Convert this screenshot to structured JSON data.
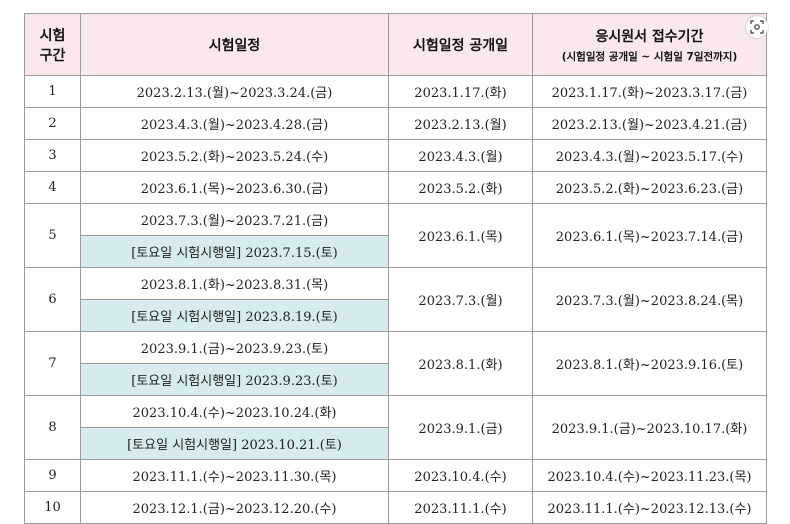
{
  "header": {
    "col_period_line1": "시험",
    "col_period_line2": "구간",
    "col_schedule": "시험일정",
    "col_open_date": "시험일정 공개일",
    "col_apply": "응시원서 접수기간",
    "col_apply_sub": "(시험일정 공개일 ~ 시험일 7일전까지)"
  },
  "rows": [
    {
      "period": "1",
      "schedule": "2023.2.13.(월)~2023.3.24.(금)",
      "open": "2023.1.17.(화)",
      "apply": "2023.1.17.(화)~2023.3.17.(금)"
    },
    {
      "period": "2",
      "schedule": "2023.4.3.(월)~2023.4.28.(금)",
      "open": "2023.2.13.(월)",
      "apply": "2023.2.13.(월)~2023.4.21.(금)"
    },
    {
      "period": "3",
      "schedule": "2023.5.2.(화)~2023.5.24.(수)",
      "open": "2023.4.3.(월)",
      "apply": "2023.4.3.(월)~2023.5.17.(수)"
    },
    {
      "period": "4",
      "schedule": "2023.6.1.(목)~2023.6.30.(금)",
      "open": "2023.5.2.(화)",
      "apply": "2023.5.2.(화)~2023.6.23.(금)"
    },
    {
      "period": "5",
      "schedule": "2023.7.3.(월)~2023.7.21.(금)",
      "saturday": "[토요일 시험시행일] 2023.7.15.(토)",
      "open": "2023.6.1.(목)",
      "apply": "2023.6.1.(목)~2023.7.14.(금)"
    },
    {
      "period": "6",
      "schedule": "2023.8.1.(화)~2023.8.31.(목)",
      "saturday": "[토요일 시험시행일] 2023.8.19.(토)",
      "open": "2023.7.3.(월)",
      "apply": "2023.7.3.(월)~2023.8.24.(목)"
    },
    {
      "period": "7",
      "schedule": "2023.9.1.(금)~2023.9.23.(토)",
      "saturday": "[토요일 시험시행일] 2023.9.23.(토)",
      "open": "2023.8.1.(화)",
      "apply": "2023.8.1.(화)~2023.9.16.(토)"
    },
    {
      "period": "8",
      "schedule": "2023.10.4.(수)~2023.10.24.(화)",
      "saturday": "[토요일 시험시행일] 2023.10.21.(토)",
      "open": "2023.9.1.(금)",
      "apply": "2023.9.1.(금)~2023.10.17.(화)"
    },
    {
      "period": "9",
      "schedule": "2023.11.1.(수)~2023.11.30.(목)",
      "open": "2023.10.4.(수)",
      "apply": "2023.10.4.(수)~2023.11.23.(목)"
    },
    {
      "period": "10",
      "schedule": "2023.12.1.(금)~2023.12.20.(수)",
      "open": "2023.11.1.(수)",
      "apply": "2023.11.1.(수)~2023.12.13.(수)"
    }
  ],
  "icons": {
    "lens": "image-search-icon"
  }
}
